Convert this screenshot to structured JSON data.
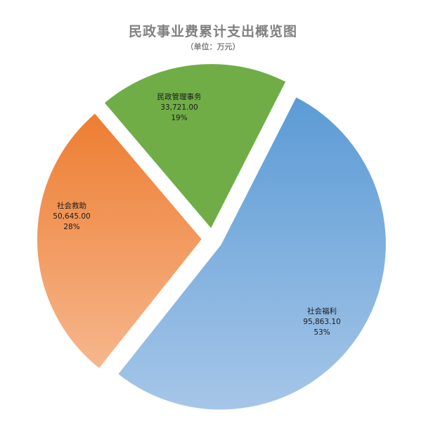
{
  "chart_data": {
    "type": "pie",
    "title": "民政事业费累计支出概览图",
    "subtitle": "（单位：万元）",
    "slices": [
      {
        "label": "社会福利",
        "value": 95863.1,
        "value_text": "95,863.10",
        "percent_text": "53%",
        "color_light": "#a6c6e8",
        "color_dark": "#5b9bd5"
      },
      {
        "label": "社会救助",
        "value": 50645.0,
        "value_text": "50,645.00",
        "percent_text": "28%",
        "color_light": "#f6b78d",
        "color_dark": "#ed7d31"
      },
      {
        "label": "民政管理事务",
        "value": 33721.0,
        "value_text": "33,721.00",
        "percent_text": "19%",
        "color_light": "#70ad47",
        "color_dark": "#70ad47"
      }
    ],
    "exploded": true,
    "legend": "none"
  }
}
